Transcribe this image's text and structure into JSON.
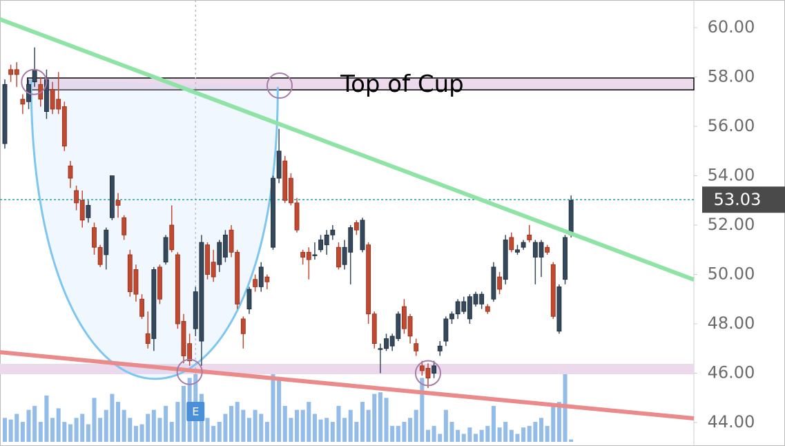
{
  "chart_data": {
    "type": "candlestick",
    "xlim": [
      -0.81,
      115.6
    ],
    "ylim": [
      43.05,
      61.12
    ],
    "yticks": [
      {
        "value": 44,
        "label": "44.00"
      },
      {
        "value": 46,
        "label": "46.00"
      },
      {
        "value": 48,
        "label": "48.00"
      },
      {
        "value": 50,
        "label": "50.00"
      },
      {
        "value": 52,
        "label": "52.00"
      },
      {
        "value": 54,
        "label": "54.00"
      },
      {
        "value": 56,
        "label": "56.00"
      },
      {
        "value": 58,
        "label": "58.00"
      },
      {
        "value": 60,
        "label": "60.00"
      }
    ],
    "up_color": "#34495e",
    "down_color": "#c0492f",
    "volume_color": "#93bde8",
    "open": [
      55.3,
      58.3,
      58.3,
      57.1,
      57.0,
      57.8,
      57.7,
      56.6,
      57.5,
      57.1,
      56.8,
      54.4,
      53.4,
      53.0,
      52.3,
      51.9,
      51.1,
      50.8,
      52.3,
      53.0,
      52.3,
      50.8,
      50.2,
      49.0,
      47.6,
      47.4,
      50.3,
      50.5,
      52.0,
      50.8,
      48.1,
      47.2,
      47.8,
      47.3,
      51.2,
      50.5,
      50.4,
      50.7,
      51.8,
      50.9,
      48.2,
      48.6,
      49.8,
      49.5,
      49.9,
      51.1,
      53.9,
      54.6,
      53.9,
      52.9,
      50.9,
      50.9,
      50.8,
      51.0,
      51.2,
      51.6,
      51.1,
      50.4,
      50.9,
      52.1,
      51.0,
      51.2,
      48.4,
      47.0,
      47.0,
      47.1,
      47.4,
      48.7,
      48.3,
      47.2,
      46.3,
      46.2,
      46.0,
      46.9,
      47.3,
      48.2,
      48.4,
      48.5,
      48.2,
      48.8,
      48.8,
      48.7,
      49.0,
      49.9,
      49.8,
      51.5,
      50.9,
      51.1,
      51.6,
      50.7,
      50.7,
      51.1,
      50.4,
      47.7,
      49.8,
      51.6
    ],
    "high": [
      57.9,
      58.5,
      58.6,
      57.3,
      57.9,
      59.2,
      58.0,
      58.3,
      57.8,
      58.2,
      57.0,
      54.6,
      53.6,
      53.4,
      53.0,
      52.1,
      51.2,
      51.9,
      54.0,
      53.3,
      52.4,
      51.0,
      50.4,
      49.2,
      48.5,
      50.3,
      50.4,
      51.6,
      52.8,
      50.9,
      48.4,
      47.6,
      49.5,
      51.6,
      51.3,
      51.0,
      51.4,
      51.8,
      52.0,
      51.0,
      48.3,
      49.5,
      50.0,
      50.5,
      50.0,
      54.0,
      55.9,
      54.8,
      54.1,
      53.1,
      51.0,
      51.1,
      51.3,
      51.6,
      51.8,
      52.0,
      51.3,
      51.4,
      52.0,
      52.2,
      52.3,
      51.3,
      48.5,
      47.2,
      47.6,
      47.6,
      48.5,
      49.0,
      48.4,
      47.4,
      46.5,
      46.4,
      46.5,
      47.3,
      48.3,
      48.5,
      49.0,
      49.1,
      49.2,
      49.3,
      49.3,
      48.8,
      50.5,
      50.1,
      51.6,
      51.7,
      51.2,
      51.4,
      52.0,
      51.4,
      51.4,
      51.2,
      50.5,
      49.6,
      51.6,
      53.2
    ],
    "low": [
      55.1,
      57.8,
      57.6,
      56.5,
      56.7,
      57.6,
      56.8,
      56.3,
      56.5,
      56.5,
      55.0,
      53.5,
      52.6,
      51.9,
      52.1,
      50.8,
      50.3,
      50.2,
      52.2,
      52.3,
      51.4,
      49.1,
      48.9,
      48.2,
      47.0,
      46.9,
      48.8,
      50.4,
      50.9,
      47.8,
      46.4,
      46.3,
      47.5,
      46.3,
      49.8,
      49.7,
      50.1,
      50.5,
      50.7,
      48.6,
      47.0,
      48.4,
      49.3,
      49.3,
      49.4,
      51.0,
      53.7,
      52.9,
      52.8,
      51.7,
      50.4,
      49.8,
      50.6,
      50.9,
      50.8,
      51.4,
      50.2,
      50.2,
      49.6,
      51.6,
      50.9,
      48.0,
      47.0,
      46.0,
      46.9,
      46.9,
      47.3,
      47.6,
      47.2,
      46.7,
      45.9,
      45.4,
      45.8,
      46.7,
      47.1,
      48.0,
      48.2,
      48.4,
      48.0,
      48.7,
      48.6,
      48.4,
      48.9,
      49.2,
      49.6,
      50.9,
      50.8,
      51.0,
      51.3,
      49.6,
      49.9,
      50.8,
      48.2,
      47.6,
      49.6,
      51.5
    ],
    "close": [
      57.7,
      58.1,
      58.1,
      56.9,
      57.7,
      58.3,
      57.1,
      57.9,
      56.7,
      56.7,
      55.2,
      53.9,
      52.9,
      52.2,
      52.8,
      51.1,
      50.4,
      51.8,
      54.0,
      52.8,
      51.6,
      49.3,
      49.2,
      48.3,
      47.2,
      50.2,
      49.0,
      51.5,
      51.0,
      48.0,
      46.7,
      46.5,
      49.3,
      51.3,
      50.0,
      49.9,
      51.3,
      51.6,
      50.9,
      48.8,
      47.6,
      49.4,
      49.5,
      50.3,
      49.7,
      53.9,
      55.0,
      53.0,
      52.9,
      51.8,
      50.7,
      50.6,
      50.8,
      51.4,
      51.6,
      51.8,
      50.3,
      51.1,
      51.9,
      51.8,
      52.2,
      48.4,
      47.2,
      47.0,
      47.4,
      47.5,
      48.4,
      47.8,
      47.5,
      46.9,
      46.1,
      45.8,
      46.3,
      47.1,
      48.2,
      48.4,
      48.9,
      48.9,
      49.1,
      49.2,
      49.2,
      48.5,
      50.3,
      49.4,
      51.4,
      51.0,
      51.0,
      51.3,
      51.4,
      51.3,
      51.3,
      50.9,
      48.3,
      49.5,
      51.5,
      53.0
    ],
    "volume": [
      30,
      28,
      35,
      25,
      40,
      45,
      25,
      58,
      30,
      42,
      25,
      22,
      30,
      35,
      22,
      55,
      30,
      40,
      60,
      50,
      40,
      30,
      20,
      22,
      35,
      40,
      30,
      45,
      25,
      50,
      70,
      80,
      95,
      60,
      30,
      20,
      25,
      35,
      45,
      50,
      40,
      30,
      40,
      35,
      25,
      90,
      78,
      45,
      30,
      40,
      40,
      50,
      35,
      28,
      30,
      25,
      45,
      30,
      40,
      25,
      50,
      40,
      60,
      62,
      55,
      20,
      20,
      25,
      30,
      40,
      80,
      15,
      20,
      10,
      40,
      25,
      15,
      10,
      18,
      10,
      15,
      20,
      45,
      18,
      25,
      15,
      10,
      18,
      20,
      25,
      30,
      20,
      45,
      50,
      85,
      3
    ],
    "last_price": {
      "value": 53.03,
      "label": "53.03"
    },
    "earnings": {
      "index": 32,
      "label": "E"
    },
    "zones": [
      {
        "from": 57.48,
        "to": 57.96,
        "start": 3.8,
        "label": "Top of Cup",
        "color": "#ecd9ec"
      },
      {
        "from": 45.96,
        "to": 46.38,
        "start": -0.81,
        "color": "#ecd9ec"
      }
    ],
    "trendlines": [
      {
        "color": "#8ee3a5",
        "points": [
          [
            -0.81,
            60.34
          ],
          [
            115.6,
            49.79
          ]
        ]
      },
      {
        "color": "#ea8a8a",
        "points": [
          [
            -0.81,
            46.85
          ],
          [
            115.6,
            44.17
          ]
        ]
      }
    ],
    "cup": {
      "color": "#7dc6f2",
      "points": [
        [
          4.4,
          57.9
        ],
        [
          24.9,
          45.77
        ],
        [
          45.8,
          57.6
        ]
      ]
    },
    "circles": [
      [
        4.9,
        57.8
      ],
      [
        46.1,
        57.65
      ],
      [
        31.0,
        46.05
      ],
      [
        71.0,
        46.0
      ]
    ]
  }
}
